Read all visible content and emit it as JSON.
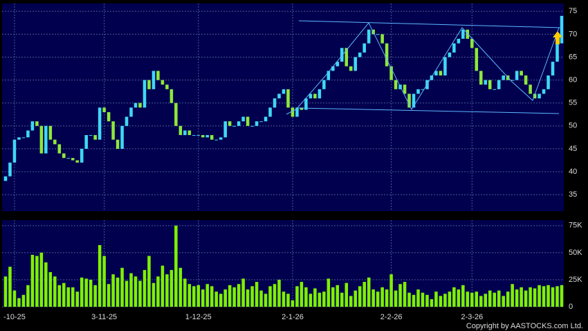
{
  "chart_data": [
    {
      "type": "candlestick",
      "categories": [
        null,
        null,
        "-10-25",
        null,
        null,
        null,
        null,
        null,
        null,
        null,
        null,
        null,
        null,
        null,
        null,
        null,
        null,
        null,
        null,
        null,
        null,
        null,
        "3-11-25",
        null,
        null,
        null,
        null,
        null,
        null,
        null,
        null,
        null,
        null,
        null,
        null,
        null,
        null,
        null,
        null,
        null,
        null,
        null,
        null,
        "1-12-25",
        null,
        null,
        null,
        null,
        null,
        null,
        null,
        null,
        null,
        null,
        null,
        null,
        null,
        null,
        null,
        null,
        null,
        null,
        null,
        null,
        "2-1-26",
        null,
        null,
        null,
        null,
        null,
        null,
        null,
        null,
        null,
        null,
        null,
        null,
        null,
        null,
        null,
        null,
        null,
        null,
        null,
        null,
        null,
        "2-2-26",
        null,
        null,
        null,
        null,
        null,
        null,
        null,
        null,
        null,
        null,
        null,
        null,
        null,
        null,
        null,
        null,
        null,
        "2-3-26",
        null,
        null,
        null,
        null,
        null,
        null,
        null,
        null,
        null,
        null,
        null,
        null,
        null,
        null,
        null,
        null,
        null,
        null,
        null,
        null
      ],
      "open": [
        38,
        39,
        42,
        47,
        47.5,
        47.5,
        49,
        51,
        50,
        44,
        50,
        47,
        46,
        44,
        43,
        43,
        42.5,
        42,
        45,
        48,
        48,
        47,
        54,
        53,
        51,
        47,
        45,
        50,
        52,
        54,
        55,
        54,
        60,
        58,
        62,
        60,
        59,
        58,
        55,
        50,
        48,
        49,
        48,
        48,
        48,
        47.5,
        48,
        47,
        47,
        47.5,
        51,
        50,
        50,
        51,
        52,
        50,
        50,
        51,
        51,
        52,
        54,
        56,
        57,
        58,
        54,
        52,
        54,
        53.5,
        56,
        57,
        56,
        58,
        60,
        62,
        63,
        64,
        67,
        63,
        62,
        65,
        66,
        68,
        71,
        70,
        70,
        68,
        63,
        60,
        58,
        59,
        57,
        54,
        57,
        58,
        58,
        60,
        61,
        62,
        61,
        65,
        66,
        68,
        69,
        71,
        69,
        67,
        62,
        59,
        60,
        58,
        58,
        60,
        61,
        60,
        60,
        62,
        61,
        59,
        57,
        56,
        57,
        58,
        61,
        64,
        68
      ],
      "close": [
        39,
        42,
        47,
        47.5,
        47.5,
        49,
        51,
        50,
        44,
        50,
        47,
        46,
        44,
        43,
        43,
        42.5,
        42,
        45,
        48,
        48,
        47,
        54,
        53,
        51,
        47,
        45,
        50,
        52,
        54,
        55,
        54,
        60,
        58,
        62,
        60,
        59,
        58,
        55,
        50,
        48,
        49,
        48,
        48,
        48,
        47.5,
        48,
        47,
        47,
        47.5,
        51,
        50,
        50,
        51,
        52,
        50,
        50,
        51,
        51,
        52,
        54,
        56,
        57,
        58,
        54,
        52,
        54,
        53.5,
        56,
        57,
        56,
        58,
        60,
        62,
        63,
        64,
        67,
        63,
        62,
        65,
        66,
        68,
        71,
        70,
        70,
        68,
        63,
        60,
        58,
        59,
        57,
        54,
        57,
        58,
        58,
        60,
        61,
        62,
        61,
        65,
        66,
        68,
        69,
        71,
        69,
        67,
        62,
        59,
        60,
        58,
        58,
        60,
        61,
        60,
        60,
        62,
        61,
        59,
        57,
        56,
        57,
        58,
        61,
        64,
        68,
        74
      ],
      "up_color": "#3fd8f5",
      "down_color": "#8fe83a",
      "ylim": [
        31.4,
        76.7
      ],
      "yticks": [
        35,
        40,
        45,
        50,
        55,
        60,
        65,
        70,
        75
      ],
      "grid": true
    },
    {
      "type": "bar",
      "values": [
        28000,
        37000,
        15000,
        8000,
        11000,
        20000,
        48000,
        47000,
        50000,
        41000,
        32000,
        28000,
        20000,
        22000,
        18000,
        18000,
        14000,
        27000,
        26000,
        25000,
        20000,
        57000,
        47000,
        21000,
        30000,
        27000,
        36000,
        24000,
        31000,
        28000,
        24000,
        34000,
        47000,
        22000,
        28000,
        38000,
        30000,
        34000,
        75000,
        36000,
        26000,
        21000,
        19000,
        20000,
        16000,
        21000,
        19000,
        14000,
        12000,
        16000,
        20000,
        18000,
        21000,
        26000,
        16000,
        19000,
        23000,
        15000,
        12000,
        19000,
        21000,
        25000,
        14000,
        12000,
        6000,
        19000,
        23000,
        18000,
        12000,
        17000,
        13000,
        14000,
        26000,
        18000,
        20000,
        13000,
        22000,
        10000,
        15000,
        19000,
        23000,
        27000,
        16000,
        14000,
        18000,
        16000,
        30000,
        15000,
        21000,
        23000,
        13000,
        11000,
        16000,
        13000,
        11000,
        7000,
        14000,
        10000,
        12000,
        14000,
        18000,
        16000,
        20000,
        14000,
        13000,
        14000,
        10000,
        12000,
        15000,
        13000,
        15000,
        10000,
        14000,
        21000,
        16000,
        18000,
        15000,
        18000,
        17000,
        20000,
        19000,
        20000,
        18000,
        19000,
        20000
      ],
      "color": "#7ff000",
      "ylim": [
        0,
        80000
      ],
      "yticks": [
        0,
        {
          "value": 25000,
          "label": "25K"
        },
        {
          "value": 50000,
          "label": "50K"
        },
        {
          "value": 75000,
          "label": "75K"
        }
      ],
      "grid": true
    }
  ],
  "copyright": "Copyright by AASTOCKS.com Ltd."
}
